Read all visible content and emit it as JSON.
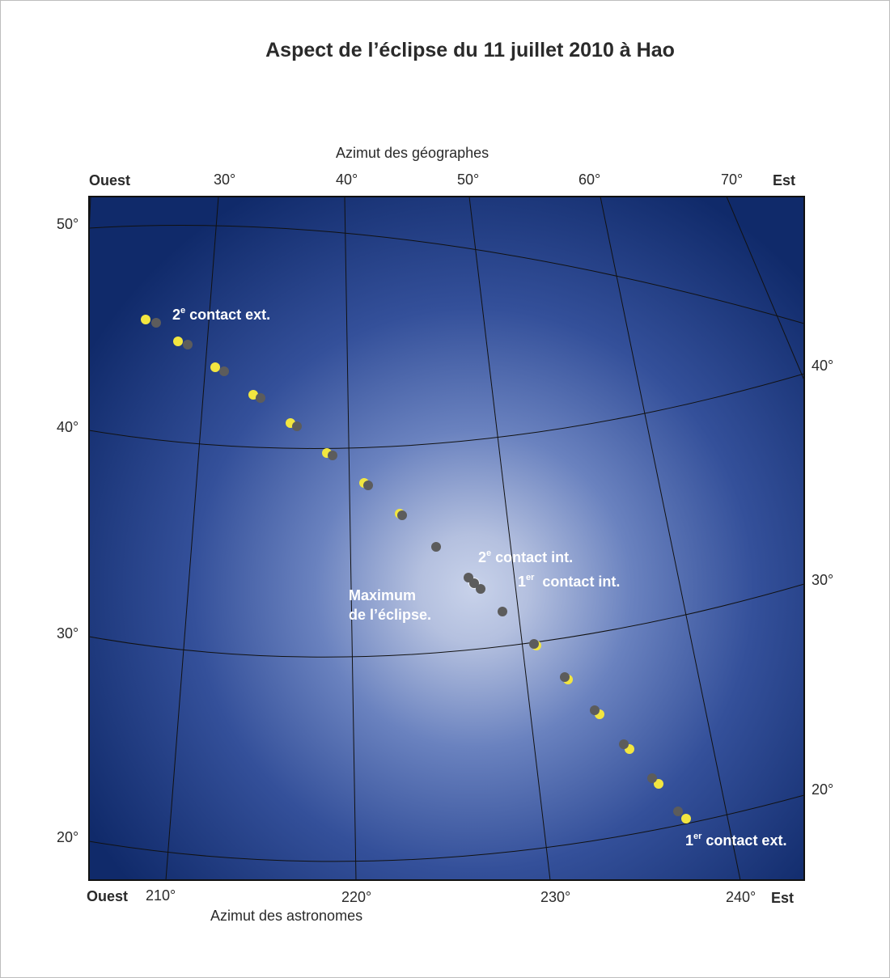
{
  "title": "Aspect de l’éclipse du 11 juillet 2010 à Hao",
  "top_axis": {
    "caption": "Azimut des géographes",
    "west": "Ouest",
    "east": "Est",
    "ticks": [
      "30°",
      "40°",
      "50°",
      "60°",
      "70°"
    ]
  },
  "bottom_axis": {
    "caption": "Azimut des astronomes",
    "west": "Ouest",
    "east": "Est",
    "ticks": [
      "210°",
      "220°",
      "230°",
      "240°"
    ]
  },
  "left_axis": {
    "ticks": [
      "50°",
      "40°",
      "30°",
      "20°"
    ]
  },
  "right_axis": {
    "ticks": [
      "40°",
      "30°",
      "20°"
    ]
  },
  "labels": {
    "second_ext": {
      "main": "2",
      "sup": "e",
      "rest": " contact ext."
    },
    "second_int": {
      "main": "2",
      "sup": "e",
      "rest": " contact int."
    },
    "first_int": {
      "main": "1",
      "sup": "er",
      "rest": "  contact int."
    },
    "first_ext": {
      "main": "1",
      "sup": "er",
      "rest": " contact ext."
    },
    "maximum_line1": "Maximum",
    "maximum_line2": "de l’éclipse."
  },
  "colors": {
    "sky_dark": "#102a6a",
    "sky_light": "#c8d2ea",
    "sun": "#f2e640",
    "moon": "#5c5c5c"
  }
}
